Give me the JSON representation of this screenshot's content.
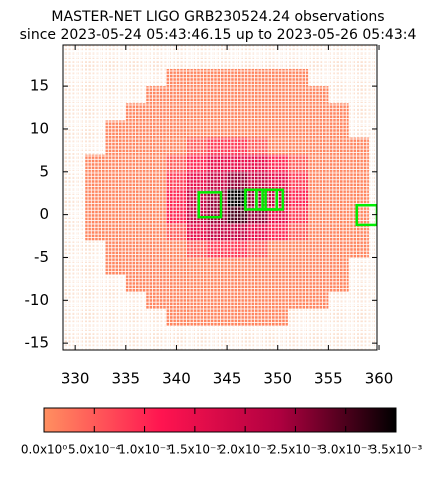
{
  "chart_data": {
    "type": "heatmap",
    "title": "MASTER-NET LIGO GRB230524.24 observations",
    "subtitle": "since 2023-05-24 05:43:46.15 up to 2023-05-26 05:43:4",
    "x": [
      332,
      334,
      336,
      338,
      340,
      342,
      344,
      346,
      348,
      350,
      352,
      354,
      356,
      358
    ],
    "y": [
      16,
      14,
      12,
      10,
      8,
      6,
      4,
      2,
      0,
      -2,
      -4,
      -6,
      -8,
      -10,
      -12
    ],
    "values": [
      [
        null,
        null,
        null,
        null,
        0.0001,
        0.0001,
        0.0001,
        0.0001,
        0.0001,
        0.0001,
        0.0001,
        null,
        null,
        null
      ],
      [
        null,
        null,
        null,
        0.0001,
        0.0001,
        0.0001,
        0.0001,
        0.0001,
        0.0001,
        0.0001,
        0.0001,
        0.0001,
        null,
        null
      ],
      [
        null,
        null,
        0.0001,
        0.0001,
        0.0001,
        0.0001,
        0.0001,
        0.0001,
        0.0001,
        0.0001,
        0.0001,
        0.0001,
        0.0001,
        null
      ],
      [
        null,
        0.0001,
        0.0001,
        0.0001,
        0.0001,
        0.0001,
        0.0001,
        0.0001,
        0.0001,
        0.0001,
        0.0001,
        0.0001,
        0.0001,
        null
      ],
      [
        null,
        0.0001,
        0.0001,
        0.0001,
        0.0001,
        0.0005,
        0.0008,
        0.0008,
        0.0005,
        0.0001,
        0.0001,
        0.0001,
        0.0001,
        0.0001
      ],
      [
        0.0001,
        0.0001,
        0.0001,
        0.0001,
        0.0005,
        0.001,
        0.0015,
        0.0015,
        0.0015,
        0.001,
        0.0005,
        0.0001,
        0.0001,
        0.0001
      ],
      [
        0.0001,
        0.0001,
        0.0001,
        0.0001,
        0.0008,
        0.0015,
        0.002,
        0.0025,
        0.002,
        0.0015,
        0.0008,
        0.0001,
        0.0001,
        0.0001
      ],
      [
        0.0001,
        0.0001,
        0.0001,
        0.0001,
        0.001,
        0.002,
        0.0025,
        0.0035,
        0.0025,
        0.002,
        0.001,
        0.0001,
        0.0001,
        0.0001
      ],
      [
        0.0001,
        0.0001,
        0.0001,
        0.0001,
        0.001,
        0.002,
        0.0025,
        0.003,
        0.0025,
        0.0015,
        0.0008,
        0.0001,
        0.0001,
        0.0001
      ],
      [
        0.0001,
        0.0001,
        0.0001,
        0.0001,
        0.0005,
        0.0015,
        0.002,
        0.002,
        0.0015,
        0.001,
        0.0005,
        0.0001,
        0.0001,
        0.0001
      ],
      [
        null,
        0.0001,
        0.0001,
        0.0001,
        0.0001,
        0.0005,
        0.0008,
        0.0008,
        0.0005,
        0.0001,
        0.0001,
        0.0001,
        0.0001,
        0.0001
      ],
      [
        null,
        0.0001,
        0.0001,
        0.0001,
        0.0001,
        0.0001,
        0.0001,
        0.0001,
        0.0001,
        0.0001,
        0.0001,
        0.0001,
        0.0001,
        null
      ],
      [
        null,
        null,
        0.0001,
        0.0001,
        0.0001,
        0.0001,
        0.0001,
        0.0001,
        0.0001,
        0.0001,
        0.0001,
        0.0001,
        0.0001,
        null
      ],
      [
        null,
        null,
        null,
        0.0001,
        0.0001,
        0.0001,
        0.0001,
        0.0001,
        0.0001,
        0.0001,
        0.0001,
        0.0001,
        null,
        null
      ],
      [
        null,
        null,
        null,
        null,
        0.0001,
        0.0001,
        0.0001,
        0.0001,
        0.0001,
        0.0001,
        null,
        null,
        null,
        null
      ]
    ],
    "xlim": [
      328.8,
      359.8
    ],
    "ylim": [
      -15.8,
      19.8
    ],
    "xticks": [
      330,
      335,
      340,
      345,
      350,
      355,
      360
    ],
    "yticks": [
      15,
      10,
      5,
      0,
      -5,
      -10,
      -15
    ],
    "fields_color": "#00ee00",
    "fields": [
      {
        "x": [
          342.2,
          344.4
        ],
        "y": [
          -0.3,
          2.6
        ]
      },
      {
        "x": [
          346.8,
          348.8
        ],
        "y": [
          0.6,
          2.9
        ]
      },
      {
        "x": [
          347.9,
          349.9
        ],
        "y": [
          0.6,
          2.9
        ]
      },
      {
        "x": [
          348.5,
          350.5
        ],
        "y": [
          0.6,
          2.9
        ]
      },
      {
        "x": [
          357.8,
          359.8
        ],
        "y": [
          -1.2,
          1.1
        ]
      }
    ],
    "colormap": [
      "#ff9060",
      "#ff1450",
      "#b00040",
      "#000000"
    ],
    "clim": [
      0,
      0.0035
    ],
    "cticks": [
      {
        "value": 0,
        "label": "0.0x10⁰"
      },
      {
        "value": 0.0005,
        "label": "5.0x10⁻⁴"
      },
      {
        "value": 0.001,
        "label": "1.0x10⁻³"
      },
      {
        "value": 0.0015,
        "label": "1.5x10⁻³"
      },
      {
        "value": 0.002,
        "label": "2.0x10⁻³"
      },
      {
        "value": 0.0025,
        "label": "2.5x10⁻³"
      },
      {
        "value": 0.003,
        "label": "3.0x10⁻³"
      },
      {
        "value": 0.0035,
        "label": "3.5x10⁻³"
      }
    ]
  }
}
